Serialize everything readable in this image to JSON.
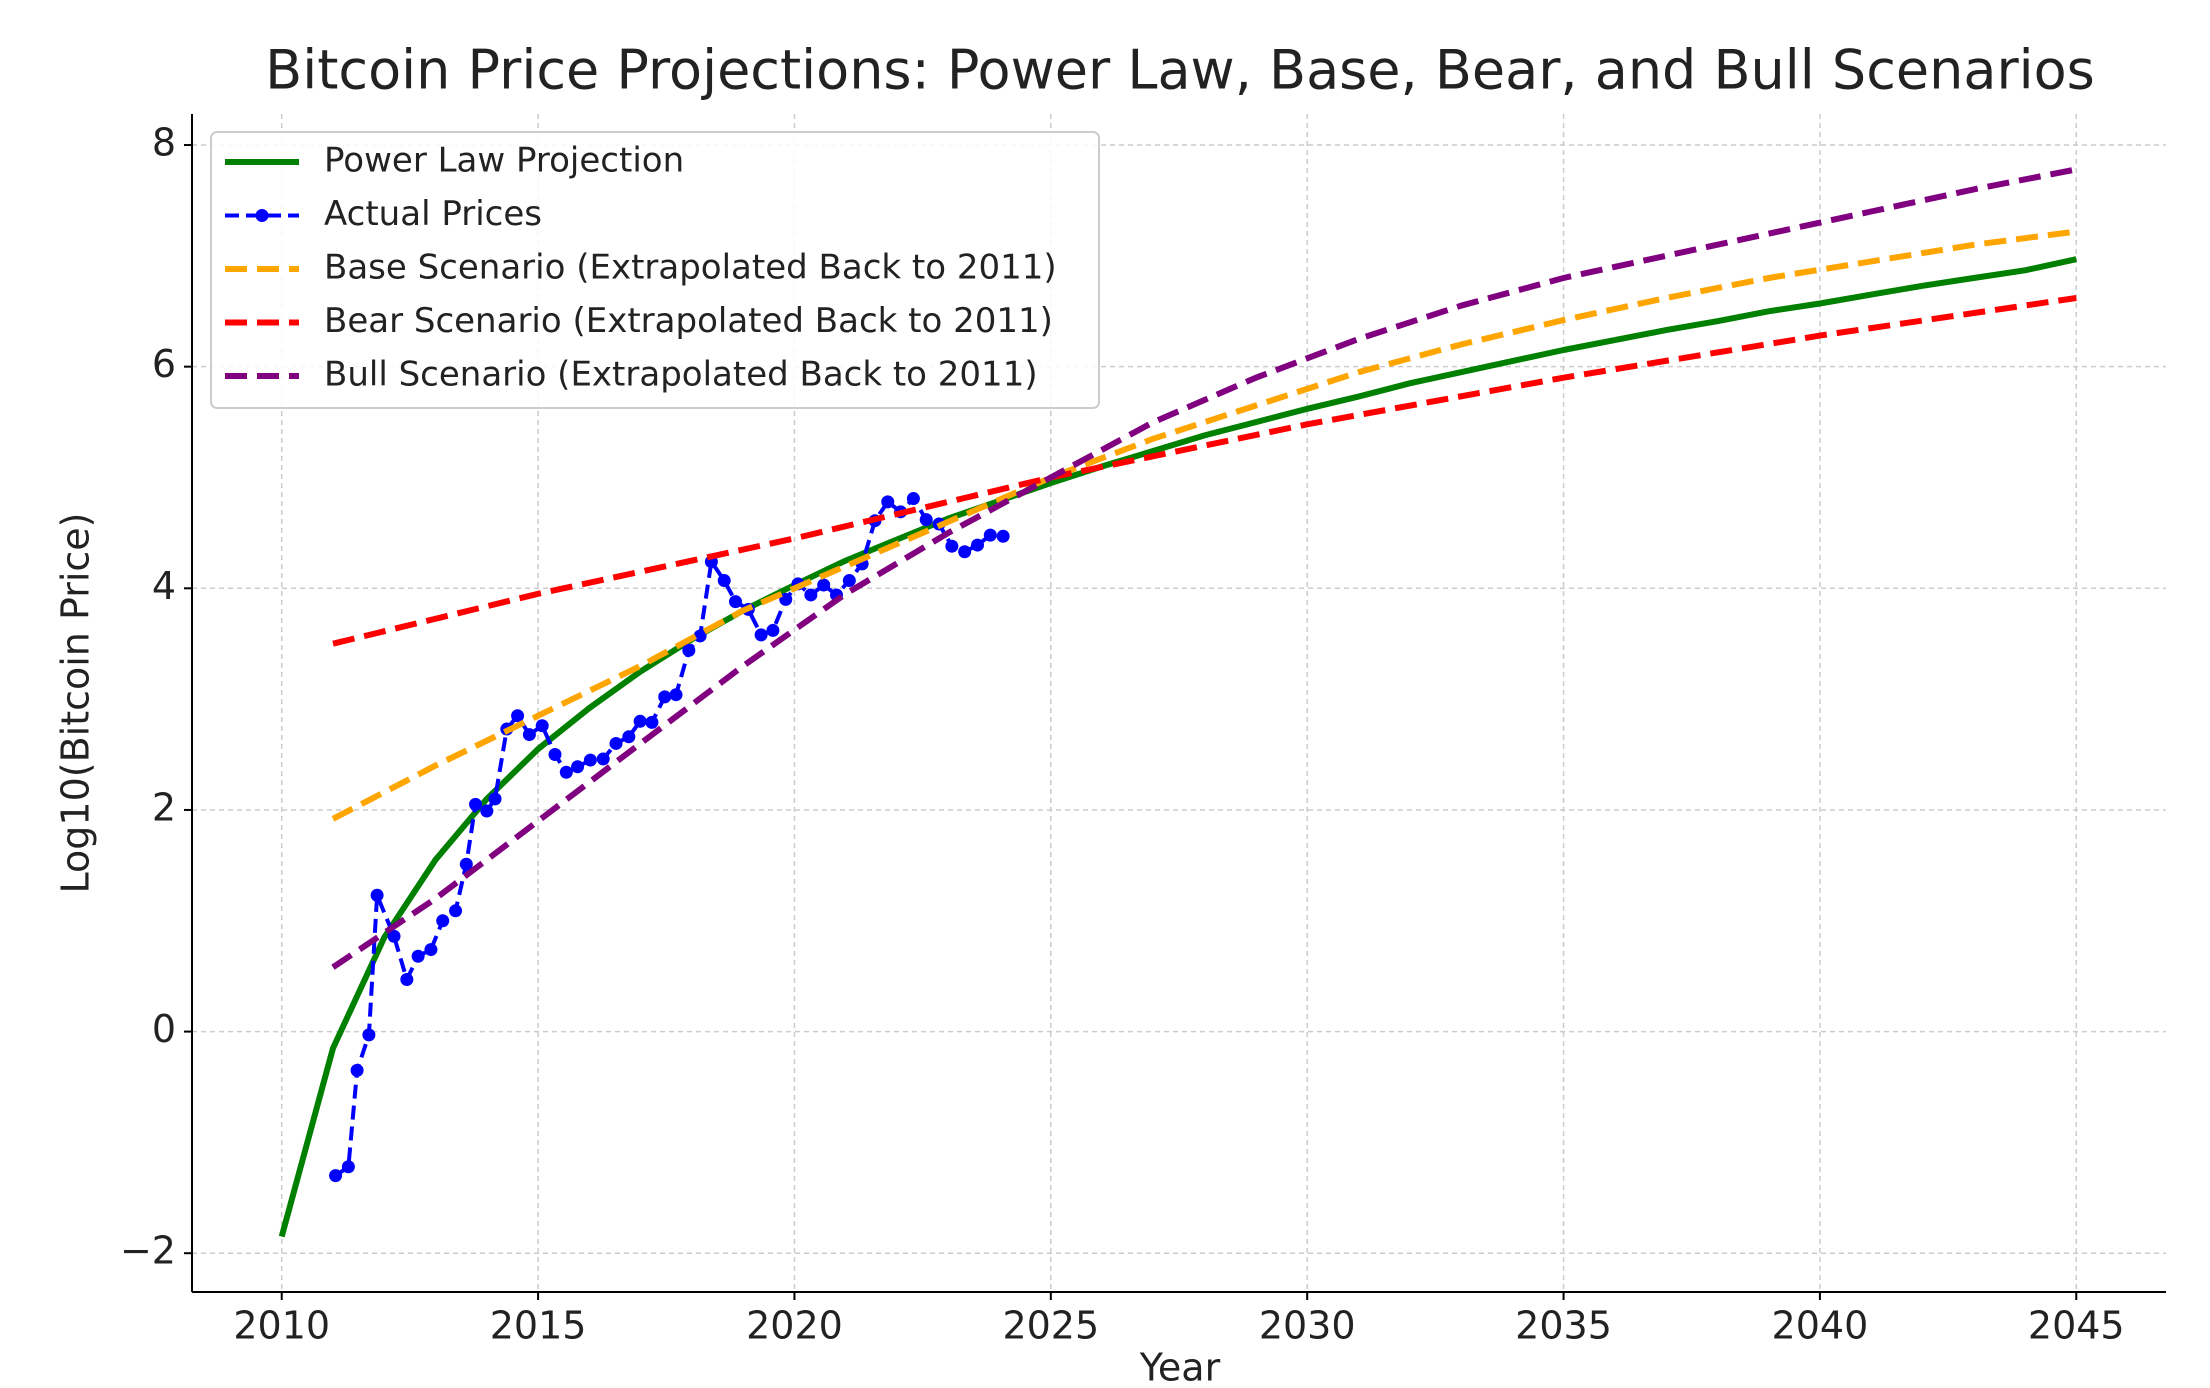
{
  "chart_data": {
    "type": "line",
    "title": "Bitcoin Price Projections: Power Law, Base, Bear, and Bull Scenarios",
    "x_label": "Year",
    "y_label": "Log10(Bitcoin Price)",
    "xlim": [
      2008.25,
      2046.75
    ],
    "ylim": [
      -2.35,
      8.28
    ],
    "xticks": [
      2010,
      2015,
      2020,
      2025,
      2030,
      2035,
      2040,
      2045
    ],
    "yticks": [
      {
        "value": -2,
        "label": "−2"
      },
      0,
      2,
      4,
      6,
      8
    ],
    "grid": true,
    "legend": "upper left",
    "series": [
      {
        "name": "Power Law Projection",
        "color": "#008000",
        "dashed": false,
        "marker": false,
        "x": [
          2010,
          2011,
          2012,
          2013,
          2014,
          2015,
          2016,
          2017,
          2018,
          2019,
          2020,
          2021,
          2022,
          2023,
          2024,
          2025,
          2026,
          2027,
          2028,
          2029,
          2030,
          2031,
          2032,
          2033,
          2034,
          2035,
          2036,
          2037,
          2038,
          2039,
          2040,
          2041,
          2042,
          2043,
          2044,
          2045
        ],
        "values": [
          -1.85,
          -0.15,
          0.85,
          1.55,
          2.1,
          2.55,
          2.92,
          3.25,
          3.54,
          3.8,
          4.03,
          4.25,
          4.44,
          4.63,
          4.79,
          4.95,
          5.1,
          5.24,
          5.38,
          5.5,
          5.62,
          5.73,
          5.85,
          5.95,
          6.05,
          6.15,
          6.24,
          6.33,
          6.41,
          6.5,
          6.57,
          6.65,
          6.73,
          6.8,
          6.87,
          6.97
        ]
      },
      {
        "name": "Actual Prices",
        "color": "#0000ff",
        "dashed": true,
        "marker": true,
        "x": [
          2011.05,
          2011.3,
          2011.47,
          2011.7,
          2011.86,
          2012.19,
          2012.44,
          2012.66,
          2012.91,
          2013.14,
          2013.39,
          2013.6,
          2013.78,
          2014.0,
          2014.16,
          2014.39,
          2014.6,
          2014.83,
          2015.08,
          2015.33,
          2015.55,
          2015.77,
          2016.02,
          2016.27,
          2016.52,
          2016.77,
          2016.99,
          2017.22,
          2017.47,
          2017.69,
          2017.94,
          2018.16,
          2018.38,
          2018.63,
          2018.85,
          2019.1,
          2019.35,
          2019.58,
          2019.83,
          2020.07,
          2020.32,
          2020.57,
          2020.82,
          2021.07,
          2021.32,
          2021.57,
          2021.82,
          2022.07,
          2022.32,
          2022.57,
          2022.82,
          2023.07,
          2023.32,
          2023.57,
          2023.82,
          2024.07
        ],
        "values": [
          -1.3,
          -1.22,
          -0.35,
          -0.03,
          1.23,
          0.86,
          0.47,
          0.68,
          0.74,
          1.0,
          1.09,
          1.51,
          2.05,
          1.99,
          2.1,
          2.73,
          2.85,
          2.68,
          2.76,
          2.5,
          2.34,
          2.39,
          2.45,
          2.46,
          2.6,
          2.66,
          2.8,
          2.79,
          3.02,
          3.04,
          3.44,
          3.57,
          4.24,
          4.07,
          3.88,
          3.81,
          3.58,
          3.62,
          3.9,
          4.04,
          3.94,
          4.03,
          3.94,
          4.07,
          4.22,
          4.61,
          4.78,
          4.69,
          4.81,
          4.62,
          4.58,
          4.38,
          4.33,
          4.39,
          4.48,
          4.47
        ]
      },
      {
        "name": "Base Scenario (Extrapolated Back to 2011)",
        "color": "#ffa500",
        "dashed": true,
        "marker": false,
        "x": [
          2011,
          2013,
          2015,
          2017,
          2019,
          2021,
          2023,
          2025,
          2027,
          2029,
          2031,
          2033,
          2035,
          2037,
          2039,
          2041,
          2043,
          2045
        ],
        "values": [
          1.92,
          2.4,
          2.85,
          3.3,
          3.8,
          4.2,
          4.6,
          5.0,
          5.35,
          5.65,
          5.95,
          6.2,
          6.42,
          6.62,
          6.8,
          6.95,
          7.1,
          7.22
        ]
      },
      {
        "name": "Bear Scenario (Extrapolated Back to 2011)",
        "color": "#ff0000",
        "dashed": true,
        "marker": false,
        "x": [
          2011,
          2015,
          2020,
          2025,
          2030,
          2035,
          2040,
          2045
        ],
        "values": [
          3.5,
          3.95,
          4.45,
          5.0,
          5.48,
          5.9,
          6.28,
          6.62
        ]
      },
      {
        "name": "Bull Scenario (Extrapolated Back to 2011)",
        "color": "#800080",
        "dashed": true,
        "marker": false,
        "x": [
          2011,
          2013,
          2015,
          2017,
          2019,
          2021,
          2023,
          2025,
          2027,
          2029,
          2031,
          2033,
          2035,
          2037,
          2039,
          2041,
          2043,
          2045
        ],
        "values": [
          0.58,
          1.2,
          1.9,
          2.6,
          3.3,
          3.95,
          4.5,
          5.0,
          5.5,
          5.9,
          6.25,
          6.55,
          6.8,
          7.0,
          7.2,
          7.4,
          7.6,
          7.78
        ]
      }
    ]
  }
}
